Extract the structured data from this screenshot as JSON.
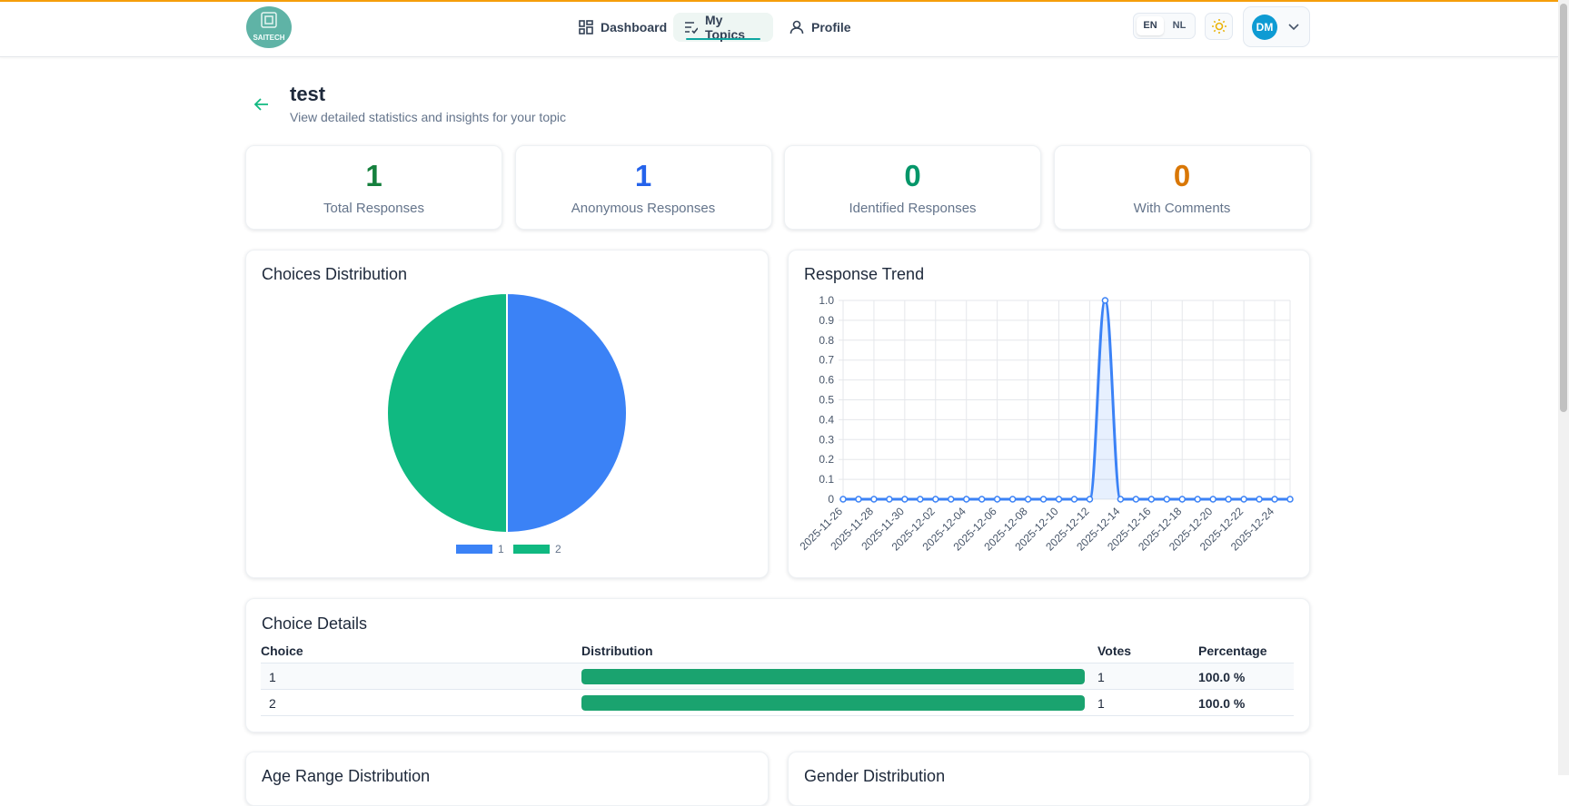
{
  "nav": {
    "brand": "SAITECH",
    "links": [
      "Dashboard",
      "My Topics",
      "Profile"
    ],
    "languages": [
      "EN",
      "NL"
    ],
    "avatar": "DM"
  },
  "header": {
    "title": "test",
    "subtitle": "View detailed statistics and insights for your topic"
  },
  "stats": [
    {
      "value": 1,
      "label": "Total Responses",
      "color": "#15803d"
    },
    {
      "value": 1,
      "label": "Anonymous Responses",
      "color": "#2563eb"
    },
    {
      "value": 0,
      "label": "Identified Responses",
      "color": "#059669"
    },
    {
      "value": 0,
      "label": "With Comments",
      "color": "#d97706"
    }
  ],
  "chart_data": [
    {
      "type": "pie",
      "title": "Choices Distribution",
      "categories": [
        "1",
        "2"
      ],
      "values": [
        1,
        1
      ],
      "colors": [
        "#3b82f6",
        "#10b981"
      ],
      "legend": "bottom"
    },
    {
      "type": "line",
      "title": "Response Trend",
      "categories": [
        "2025-11-26",
        null,
        "2025-11-28",
        null,
        "2025-11-30",
        null,
        "2025-12-02",
        null,
        "2025-12-04",
        null,
        "2025-12-06",
        null,
        "2025-12-08",
        null,
        "2025-12-10",
        null,
        "2025-12-12",
        null,
        "2025-12-14",
        null,
        "2025-12-16",
        null,
        "2025-12-18",
        null,
        "2025-12-20",
        null,
        "2025-12-22",
        null,
        "2025-12-24",
        null
      ],
      "values": [
        0,
        0,
        0,
        0,
        0,
        0,
        0,
        0,
        0,
        0,
        0,
        0,
        0,
        0,
        0,
        0,
        0,
        1,
        0,
        0,
        0,
        0,
        0,
        0,
        0,
        0,
        0,
        0,
        0,
        0
      ],
      "color": "#3b82f6",
      "ylim": [
        0,
        1
      ],
      "yticks": [
        0,
        0.1,
        0.2,
        0.3,
        0.4,
        0.5,
        0.6,
        0.7,
        0.8,
        0.9,
        {
          "value": 1,
          "label": "1.0"
        }
      ],
      "grid": true
    }
  ],
  "table": {
    "title": "Choice Details",
    "columns": [
      "Choice",
      "Distribution",
      "Votes",
      "Percentage"
    ],
    "bar_color": "#1aa36f",
    "rows": [
      {
        "choice": "1",
        "votes": 1,
        "percentage": {
          "value": 100,
          "label": "100.0 %"
        }
      },
      {
        "choice": "2",
        "votes": 1,
        "percentage": {
          "value": 100,
          "label": "100.0 %"
        }
      }
    ]
  },
  "sections": [
    "Age Range Distribution",
    "Gender Distribution"
  ]
}
